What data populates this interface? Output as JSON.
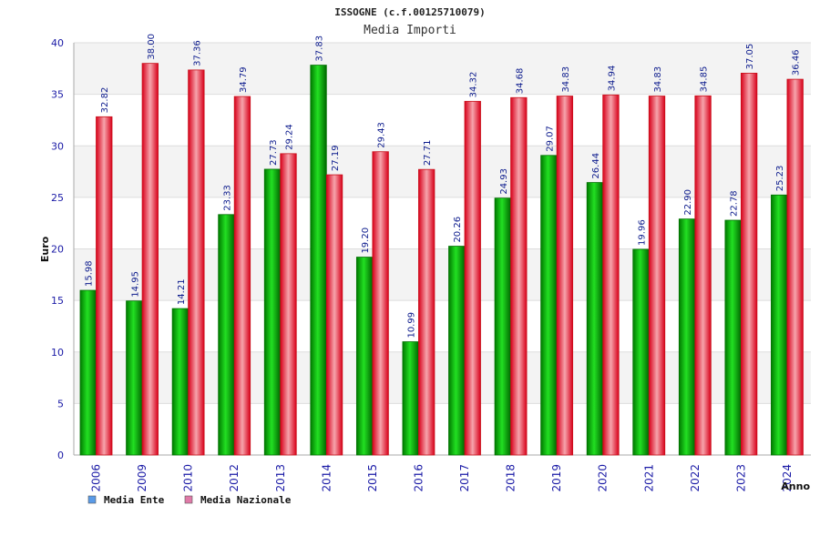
{
  "chart_data": {
    "type": "bar",
    "title": "ISSOGNE (c.f.00125710079)",
    "subtitle": "Media Importi",
    "xlabel": "Anno",
    "ylabel": "Euro",
    "ylim": [
      0,
      40
    ],
    "yticks": [
      0,
      5,
      10,
      15,
      20,
      25,
      30,
      35,
      40
    ],
    "grid": true,
    "legend_position": "bottom-left",
    "categories": [
      "2006",
      "2009",
      "2010",
      "2012",
      "2013",
      "2014",
      "2015",
      "2016",
      "2017",
      "2018",
      "2019",
      "2020",
      "2021",
      "2022",
      "2023",
      "2024"
    ],
    "series": [
      {
        "name": "Media Ente",
        "color": "#00b400",
        "legend_color": "#5a9be8",
        "values": [
          15.98,
          14.95,
          14.21,
          23.33,
          27.73,
          37.83,
          19.2,
          10.99,
          20.26,
          24.93,
          29.07,
          26.44,
          19.96,
          22.9,
          22.78,
          25.23
        ],
        "labels": [
          "15.98",
          "14.95",
          "14.21",
          "23.33",
          "27.73",
          "37.83",
          "19.20",
          "10.99",
          "20.26",
          "24.93",
          "29.07",
          "26.44",
          "19.96",
          "22.90",
          "22.78",
          "25.23"
        ]
      },
      {
        "name": "Media Nazionale",
        "color": "#e8101a",
        "legend_color": "#e07aa8",
        "values": [
          32.82,
          38.0,
          37.36,
          34.79,
          29.24,
          27.19,
          29.43,
          27.71,
          34.32,
          34.68,
          34.83,
          34.94,
          34.83,
          34.85,
          37.05,
          36.46
        ],
        "labels": [
          "32.82",
          "38.00",
          "37.36",
          "34.79",
          "29.24",
          "27.19",
          "29.43",
          "27.71",
          "34.32",
          "34.68",
          "34.83",
          "34.94",
          "34.83",
          "34.85",
          "37.05",
          "36.46"
        ]
      }
    ]
  }
}
